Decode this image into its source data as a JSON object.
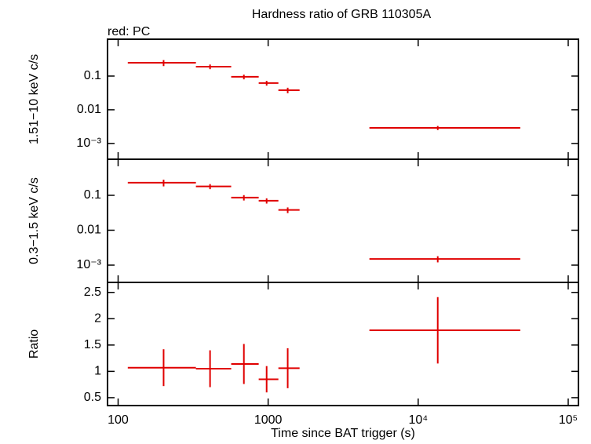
{
  "chart_data": [
    {
      "type": "errorbar",
      "title": "Hardness ratio of GRB 110305A",
      "subtitle": "red: PC",
      "ylabel": "1.51−10 keV c/s",
      "yscale": "log",
      "color": "#e00000",
      "x": [
        201,
        410,
        689,
        977,
        1350,
        13500
      ],
      "x_lo": [
        116,
        330,
        567,
        865,
        1170,
        4730
      ],
      "x_hi": [
        330,
        567,
        865,
        1170,
        1620,
        47900
      ],
      "values": [
        0.248,
        0.19,
        0.095,
        0.062,
        0.038,
        0.0029
      ],
      "yerr": [
        0.05,
        0.03,
        0.015,
        0.01,
        0.007,
        0.0004
      ],
      "ylim": [
        0.00034,
        1.24
      ],
      "yticks": [
        0.1,
        0.01,
        {
          "value": 0.001,
          "label": "10⁻³"
        }
      ]
    },
    {
      "type": "errorbar",
      "ylabel": "0.3−1.5 keV c/s",
      "yscale": "log",
      "color": "#e00000",
      "x": [
        201,
        410,
        689,
        977,
        1350,
        13500
      ],
      "x_lo": [
        116,
        330,
        567,
        865,
        1170,
        4730
      ],
      "x_hi": [
        330,
        567,
        865,
        1170,
        1620,
        47900
      ],
      "values": [
        0.23,
        0.18,
        0.086,
        0.07,
        0.038,
        0.0015
      ],
      "yerr": [
        0.05,
        0.03,
        0.015,
        0.012,
        0.007,
        0.0003
      ],
      "ylim": [
        0.00032,
        1.08
      ],
      "yticks": [
        0.1,
        0.01,
        {
          "value": 0.001,
          "label": "10⁻³"
        }
      ]
    },
    {
      "type": "errorbar",
      "ylabel": "Ratio",
      "yscale": "linear",
      "color": "#e00000",
      "xlabel": "Time since BAT trigger (s)",
      "xscale": "log",
      "xlim": [
        85,
        117000
      ],
      "xticks": [
        100,
        1000,
        {
          "value": 10000,
          "label": "10⁴"
        },
        {
          "value": 100000,
          "label": "10⁵"
        }
      ],
      "x": [
        201,
        410,
        689,
        977,
        1350,
        13500
      ],
      "x_lo": [
        116,
        330,
        567,
        865,
        1170,
        4730
      ],
      "x_hi": [
        330,
        567,
        865,
        1170,
        1620,
        47900
      ],
      "values": [
        1.07,
        1.05,
        1.14,
        0.85,
        1.06,
        1.78
      ],
      "yerr": [
        0.35,
        0.35,
        0.38,
        0.25,
        0.38,
        0.63
      ],
      "ylim": [
        0.35,
        2.69
      ],
      "yticks": [
        2.5,
        2,
        1.5,
        1,
        0.5
      ]
    }
  ]
}
